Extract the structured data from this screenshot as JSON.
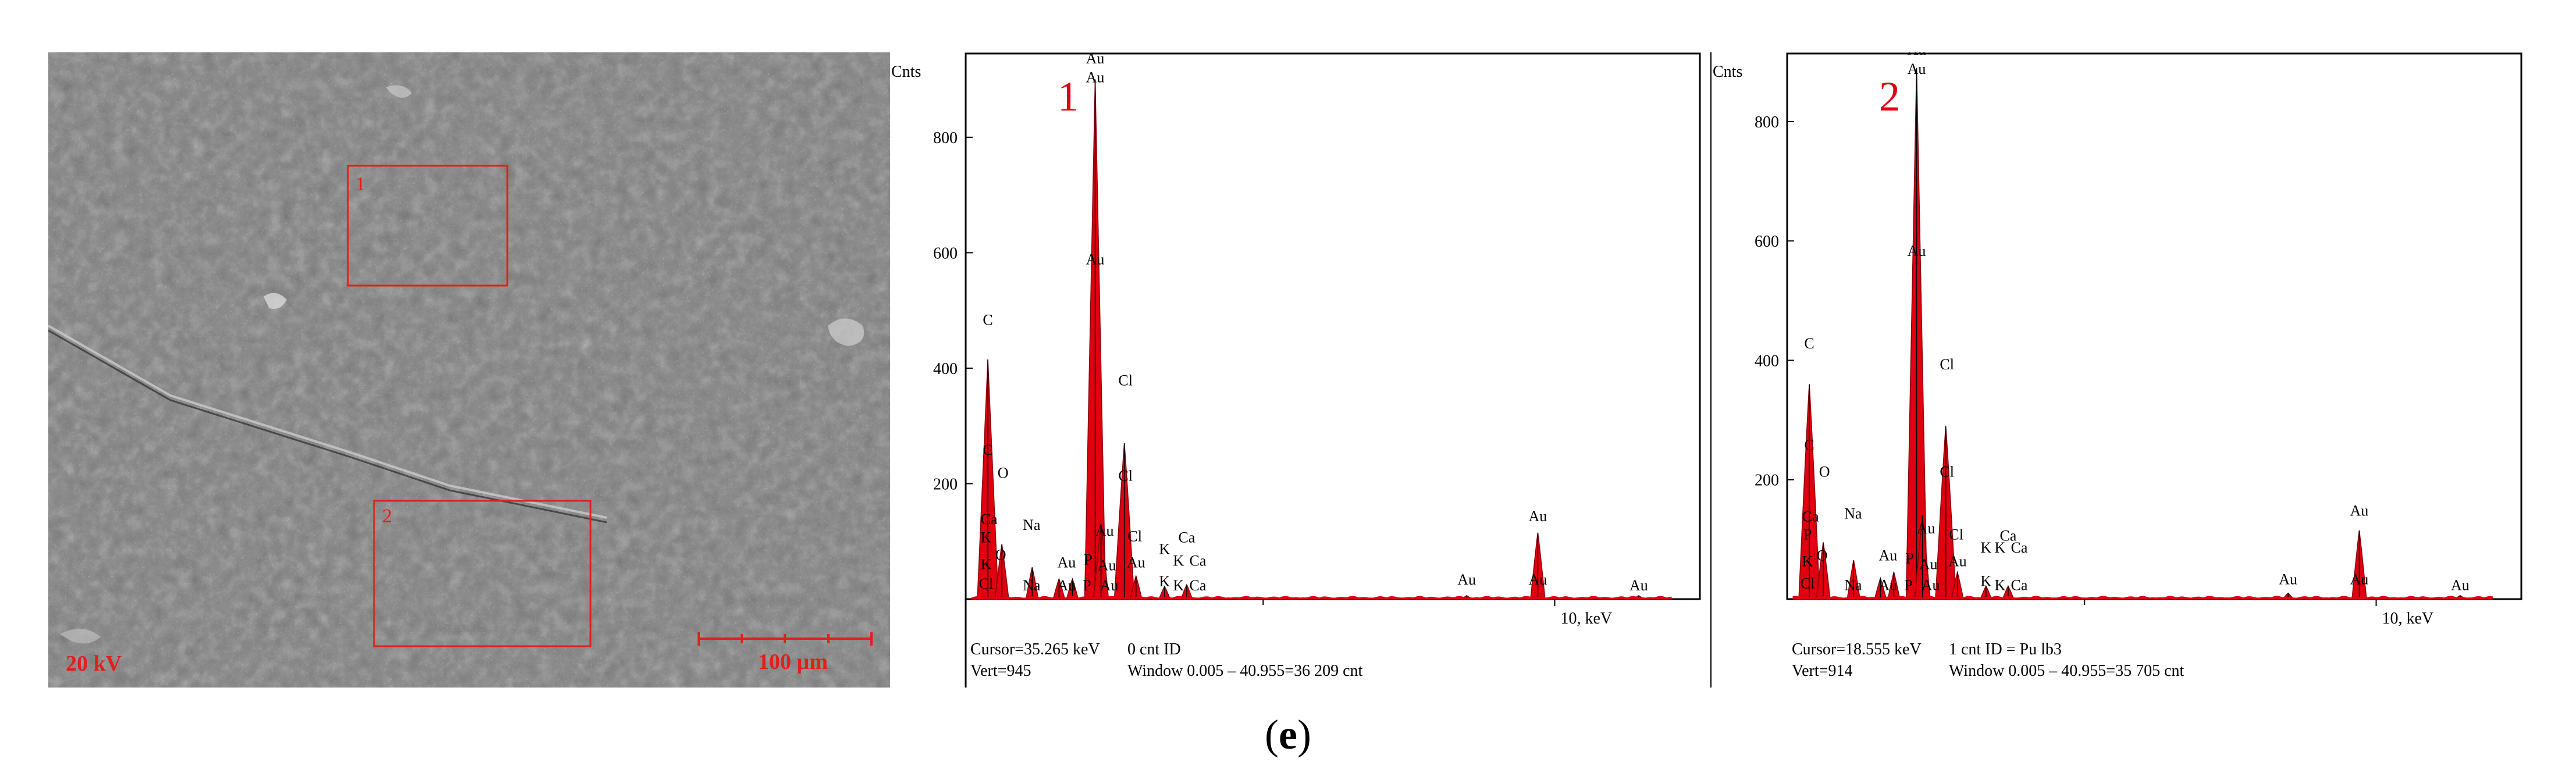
{
  "sem_image": {
    "voltage_label": "20 kV",
    "scale_bar_label": "100 µm",
    "region_labels": [
      "1",
      "2"
    ],
    "colors": {
      "overlay": "#e0201c",
      "background": "#3e3e3e"
    }
  },
  "caption": {
    "open": "(",
    "letter": "e",
    "close": ")"
  },
  "chart_data": [
    {
      "type": "bar",
      "panel_number": "1",
      "ylabel": "Cnts",
      "xlabel": "keV",
      "xlim": [
        0.0,
        12.0
      ],
      "ylim": [
        0,
        945
      ],
      "y_ticks": [
        200,
        400,
        600,
        800
      ],
      "x_tick_labels": [
        {
          "x": 10,
          "label": "10, keV"
        }
      ],
      "x_minor_ticks": [
        5
      ],
      "series_color": "#e0000f",
      "peaks": [
        {
          "x": 0.28,
          "y": 415
        },
        {
          "x": 0.52,
          "y": 95
        },
        {
          "x": 1.04,
          "y": 55
        },
        {
          "x": 1.5,
          "y": 35
        },
        {
          "x": 1.73,
          "y": 35
        },
        {
          "x": 2.12,
          "y": 900
        },
        {
          "x": 2.22,
          "y": 130
        },
        {
          "x": 2.62,
          "y": 270
        },
        {
          "x": 2.82,
          "y": 40
        },
        {
          "x": 3.31,
          "y": 22
        },
        {
          "x": 3.69,
          "y": 25
        },
        {
          "x": 8.49,
          "y": 6
        },
        {
          "x": 9.71,
          "y": 115
        },
        {
          "x": 11.44,
          "y": 6
        }
      ],
      "peak_labels": [
        {
          "text": "C",
          "x": 0.28,
          "y": 475
        },
        {
          "text": "C",
          "x": 0.28,
          "y": 250
        },
        {
          "text": "O",
          "x": 0.54,
          "y": 210
        },
        {
          "text": "Ca",
          "x": 0.3,
          "y": 130
        },
        {
          "text": "K",
          "x": 0.25,
          "y": 98
        },
        {
          "text": "K",
          "x": 0.25,
          "y": 52
        },
        {
          "text": "O",
          "x": 0.5,
          "y": 68
        },
        {
          "text": "Cl",
          "x": 0.25,
          "y": 18
        },
        {
          "text": "Na",
          "x": 1.03,
          "y": 120
        },
        {
          "text": "Na",
          "x": 1.03,
          "y": 15
        },
        {
          "text": "Au",
          "x": 1.63,
          "y": 55
        },
        {
          "text": "Au",
          "x": 1.63,
          "y": 15
        },
        {
          "text": "P",
          "x": 2.0,
          "y": 60
        },
        {
          "text": "P",
          "x": 1.98,
          "y": 15
        },
        {
          "text": "Au",
          "x": 2.12,
          "y": 928
        },
        {
          "text": "Au",
          "x": 2.12,
          "y": 895
        },
        {
          "text": "Au",
          "x": 2.12,
          "y": 580
        },
        {
          "text": "Au",
          "x": 2.28,
          "y": 110
        },
        {
          "text": "Au",
          "x": 2.32,
          "y": 50
        },
        {
          "text": "Au",
          "x": 2.36,
          "y": 15
        },
        {
          "text": "Cl",
          "x": 2.64,
          "y": 370
        },
        {
          "text": "Cl",
          "x": 2.64,
          "y": 205
        },
        {
          "text": "Cl",
          "x": 2.8,
          "y": 100
        },
        {
          "text": "Au",
          "x": 2.82,
          "y": 55
        },
        {
          "text": "Ca",
          "x": 3.69,
          "y": 98
        },
        {
          "text": "K",
          "x": 3.31,
          "y": 78
        },
        {
          "text": "K",
          "x": 3.55,
          "y": 58
        },
        {
          "text": "Ca",
          "x": 3.88,
          "y": 58
        },
        {
          "text": "K",
          "x": 3.31,
          "y": 22
        },
        {
          "text": "K",
          "x": 3.55,
          "y": 15
        },
        {
          "text": "Ca",
          "x": 3.88,
          "y": 15
        },
        {
          "text": "Au",
          "x": 8.49,
          "y": 25
        },
        {
          "text": "Au",
          "x": 9.71,
          "y": 135
        },
        {
          "text": "Au",
          "x": 9.71,
          "y": 25
        },
        {
          "text": "Au",
          "x": 11.44,
          "y": 15
        }
      ],
      "status": {
        "cursor": "Cursor=35.265 keV",
        "cursor_count": "0 cnt ID",
        "vert": "Vert=945",
        "window": "Window 0.005 – 40.955=36 209 cnt"
      }
    },
    {
      "type": "bar",
      "panel_number": "2",
      "ylabel": "Cnts",
      "xlabel": "keV",
      "xlim": [
        0.0,
        12.0
      ],
      "ylim": [
        0,
        914
      ],
      "y_ticks": [
        200,
        400,
        600,
        800
      ],
      "x_tick_labels": [
        {
          "x": 10,
          "label": "10, keV"
        }
      ],
      "x_minor_ticks": [
        5
      ],
      "series_color": "#e0000f",
      "peaks": [
        {
          "x": 0.28,
          "y": 360
        },
        {
          "x": 0.52,
          "y": 95
        },
        {
          "x": 1.04,
          "y": 65
        },
        {
          "x": 1.5,
          "y": 35
        },
        {
          "x": 1.73,
          "y": 45
        },
        {
          "x": 2.12,
          "y": 890
        },
        {
          "x": 2.22,
          "y": 140
        },
        {
          "x": 2.62,
          "y": 290
        },
        {
          "x": 2.82,
          "y": 45
        },
        {
          "x": 3.31,
          "y": 22
        },
        {
          "x": 3.69,
          "y": 22
        },
        {
          "x": 8.49,
          "y": 10
        },
        {
          "x": 9.71,
          "y": 115
        },
        {
          "x": 11.44,
          "y": 6
        }
      ],
      "peak_labels": [
        {
          "text": "C",
          "x": 0.28,
          "y": 420
        },
        {
          "text": "C",
          "x": 0.28,
          "y": 250
        },
        {
          "text": "O",
          "x": 0.54,
          "y": 205
        },
        {
          "text": "Ca",
          "x": 0.3,
          "y": 130
        },
        {
          "text": "P",
          "x": 0.25,
          "y": 100
        },
        {
          "text": "K",
          "x": 0.25,
          "y": 55
        },
        {
          "text": "O",
          "x": 0.5,
          "y": 65
        },
        {
          "text": "Cl",
          "x": 0.25,
          "y": 18
        },
        {
          "text": "Na",
          "x": 1.03,
          "y": 135
        },
        {
          "text": "Na",
          "x": 1.03,
          "y": 15
        },
        {
          "text": "Au",
          "x": 1.63,
          "y": 65
        },
        {
          "text": "Au",
          "x": 1.63,
          "y": 15
        },
        {
          "text": "P",
          "x": 2.0,
          "y": 60
        },
        {
          "text": "P",
          "x": 1.98,
          "y": 15
        },
        {
          "text": "Au",
          "x": 2.12,
          "y": 912
        },
        {
          "text": "Au",
          "x": 2.12,
          "y": 880
        },
        {
          "text": "Au",
          "x": 2.12,
          "y": 575
        },
        {
          "text": "Au",
          "x": 2.28,
          "y": 110
        },
        {
          "text": "Au",
          "x": 2.32,
          "y": 50
        },
        {
          "text": "Au",
          "x": 2.36,
          "y": 15
        },
        {
          "text": "Cl",
          "x": 2.64,
          "y": 385
        },
        {
          "text": "Cl",
          "x": 2.64,
          "y": 205
        },
        {
          "text": "Cl",
          "x": 2.8,
          "y": 100
        },
        {
          "text": "Au",
          "x": 2.82,
          "y": 55
        },
        {
          "text": "Ca",
          "x": 3.69,
          "y": 98
        },
        {
          "text": "K",
          "x": 3.31,
          "y": 78
        },
        {
          "text": "K",
          "x": 3.55,
          "y": 78
        },
        {
          "text": "Ca",
          "x": 3.88,
          "y": 78
        },
        {
          "text": "K",
          "x": 3.31,
          "y": 22
        },
        {
          "text": "K",
          "x": 3.55,
          "y": 15
        },
        {
          "text": "Ca",
          "x": 3.88,
          "y": 15
        },
        {
          "text": "Au",
          "x": 8.49,
          "y": 25
        },
        {
          "text": "Au",
          "x": 9.71,
          "y": 140
        },
        {
          "text": "Au",
          "x": 9.71,
          "y": 25
        },
        {
          "text": "Au",
          "x": 11.44,
          "y": 15
        }
      ],
      "status": {
        "cursor": "Cursor=18.555 keV",
        "cursor_count": "1 cnt ID = Pu lb3",
        "vert": "Vert=914",
        "window": "Window 0.005 – 40.955=35 705 cnt"
      }
    }
  ]
}
